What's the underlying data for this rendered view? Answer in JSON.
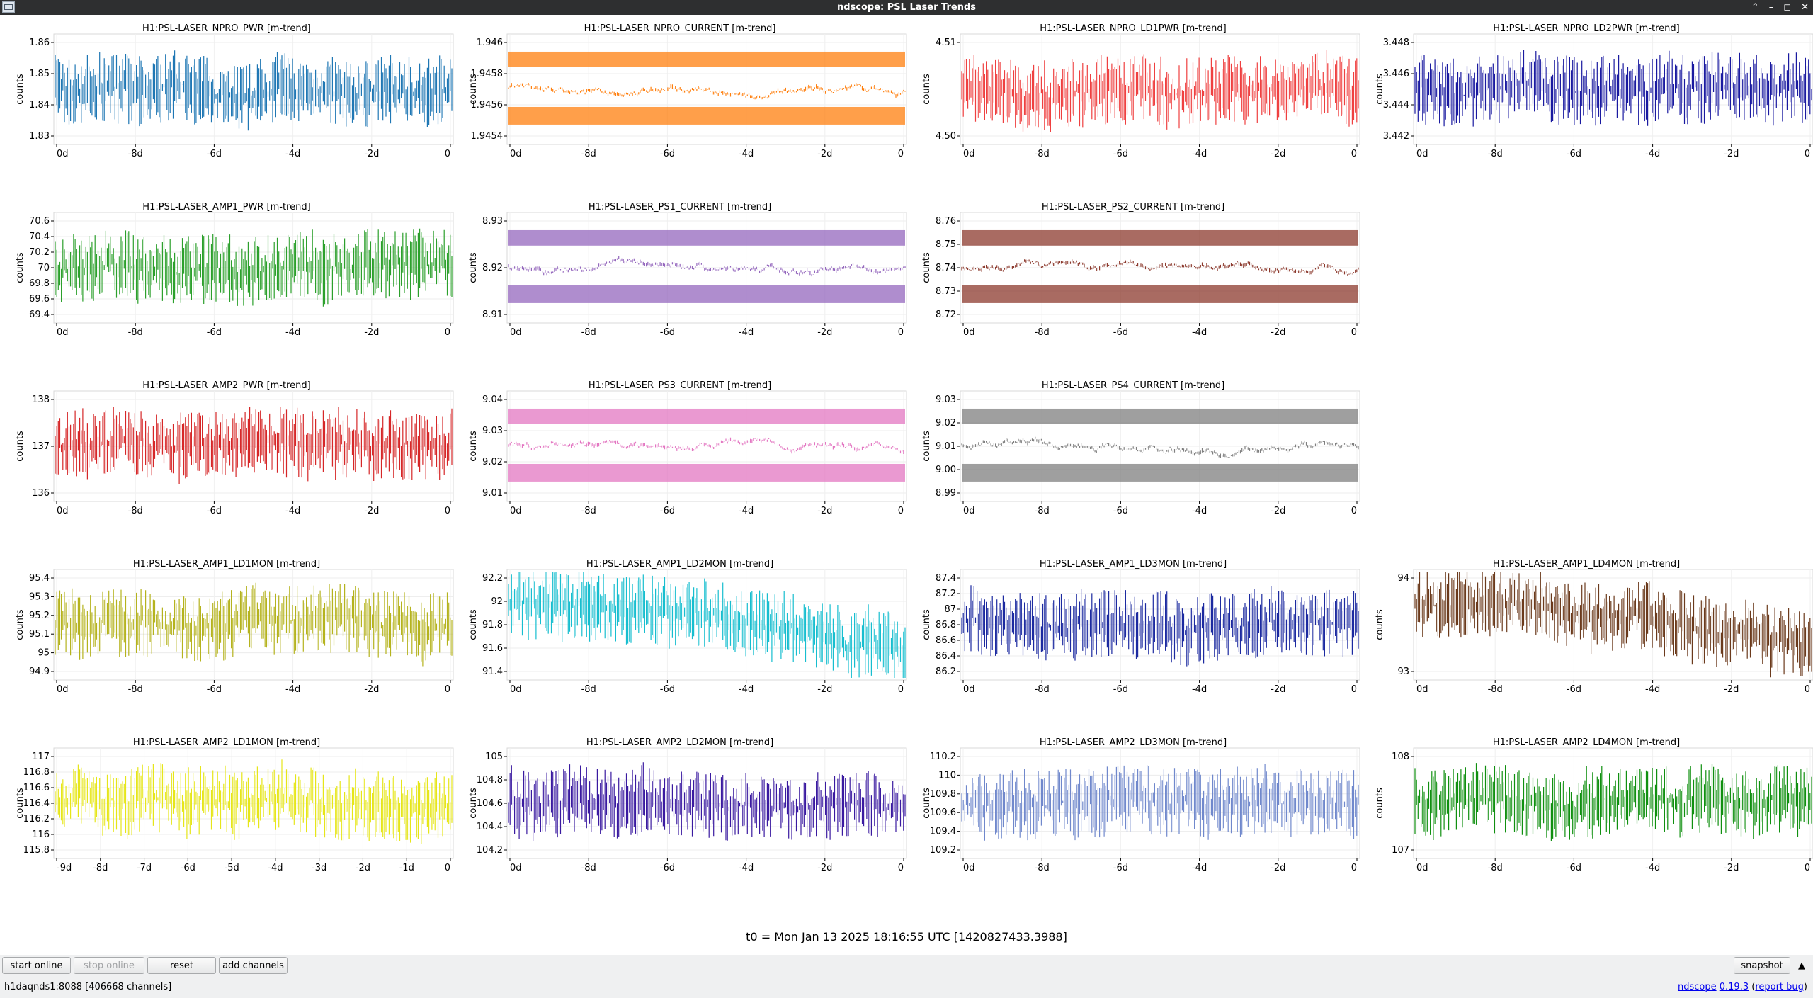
{
  "window": {
    "title": "ndscope: PSL Laser Trends"
  },
  "colors": {
    "titlebar": "#2e2f30",
    "plot_bg": "#ffffff",
    "grid": "#e8e8e8"
  },
  "plots": [
    {
      "title": "H1:PSL-LASER_NPRO_PWR [m-trend]",
      "color": "#1f77b4",
      "ylabel": "counts",
      "yticks": [
        "1.86",
        "1.85",
        "1.84",
        "1.83"
      ],
      "xticks": [
        "0d",
        "-8d",
        "-6d",
        "-4d",
        "-2d",
        "0"
      ]
    },
    {
      "title": "H1:PSL-LASER_NPRO_CURRENT [m-trend]",
      "color": "#ff7f0e",
      "ylabel": "counts",
      "yticks": [
        "1.946",
        "1.9458",
        "1.9456",
        "1.9454"
      ],
      "xticks": [
        "0d",
        "-8d",
        "-6d",
        "-4d",
        "-2d",
        "0"
      ]
    },
    {
      "title": "H1:PSL-LASER_NPRO_LD1PWR [m-trend]",
      "color": "#ef4040",
      "ylabel": "counts",
      "yticks": [
        "4.51",
        "4.50"
      ],
      "xticks": [
        "0d",
        "-8d",
        "-6d",
        "-4d",
        "-2d",
        "0"
      ]
    },
    {
      "title": "H1:PSL-LASER_NPRO_LD2PWR [m-trend]",
      "color": "#1a1aa0",
      "ylabel": "counts",
      "yticks": [
        "3.448",
        "3.446",
        "3.444",
        "3.442"
      ],
      "xticks": [
        "0d",
        "-8d",
        "-6d",
        "-4d",
        "-2d",
        "0"
      ]
    },
    {
      "title": "H1:PSL-LASER_AMP1_PWR [m-trend]",
      "color": "#2ca02c",
      "ylabel": "counts",
      "yticks": [
        "70.6",
        "70.4",
        "70.2",
        "70",
        "69.8",
        "69.6",
        "69.4"
      ],
      "xticks": [
        "0d",
        "-8d",
        "-6d",
        "-4d",
        "-2d",
        "0"
      ]
    },
    {
      "title": "H1:PSL-LASER_PS1_CURRENT [m-trend]",
      "color": "#9467bd",
      "ylabel": "counts",
      "yticks": [
        "8.93",
        "8.92",
        "8.91"
      ],
      "xticks": [
        "0d",
        "-8d",
        "-6d",
        "-4d",
        "-2d",
        "0"
      ]
    },
    {
      "title": "H1:PSL-LASER_PS2_CURRENT [m-trend]",
      "color": "#8c3a2e",
      "ylabel": "counts",
      "yticks": [
        "8.76",
        "8.75",
        "8.74",
        "8.73",
        "8.72"
      ],
      "xticks": [
        "0d",
        "-8d",
        "-6d",
        "-4d",
        "-2d",
        "0"
      ]
    },
    {
      "title": "H1:PSL-LASER_AMP2_PWR [m-trend]",
      "color": "#d62728",
      "ylabel": "counts",
      "yticks": [
        "138",
        "137",
        "136"
      ],
      "xticks": [
        "0d",
        "-8d",
        "-6d",
        "-4d",
        "-2d",
        "0"
      ]
    },
    {
      "title": "H1:PSL-LASER_PS3_CURRENT [m-trend]",
      "color": "#e377c2",
      "ylabel": "counts",
      "yticks": [
        "9.04",
        "9.03",
        "9.02",
        "9.01"
      ],
      "xticks": [
        "0d",
        "-8d",
        "-6d",
        "-4d",
        "-2d",
        "0"
      ]
    },
    {
      "title": "H1:PSL-LASER_PS4_CURRENT [m-trend]",
      "color": "#7f7f7f",
      "ylabel": "counts",
      "yticks": [
        "9.03",
        "9.02",
        "9.01",
        "9.00",
        "8.99"
      ],
      "xticks": [
        "0d",
        "-8d",
        "-6d",
        "-4d",
        "-2d",
        "0"
      ]
    },
    {
      "title": "H1:PSL-LASER_AMP1_LD1MON [m-trend]",
      "color": "#b5b31e",
      "ylabel": "counts",
      "yticks": [
        "95.4",
        "95.3",
        "95.2",
        "95.1",
        "95",
        "94.9"
      ],
      "xticks": [
        "0d",
        "-8d",
        "-6d",
        "-4d",
        "-2d",
        "0"
      ]
    },
    {
      "title": "H1:PSL-LASER_AMP1_LD2MON [m-trend]",
      "color": "#17becf",
      "ylabel": "counts",
      "yticks": [
        "92.2",
        "92",
        "91.8",
        "91.6",
        "91.4"
      ],
      "xticks": [
        "0d",
        "-8d",
        "-6d",
        "-4d",
        "-2d",
        "0"
      ]
    },
    {
      "title": "H1:PSL-LASER_AMP1_LD3MON [m-trend]",
      "color": "#1c2aa0",
      "ylabel": "counts",
      "yticks": [
        "87.4",
        "87.2",
        "87",
        "86.8",
        "86.6",
        "86.4",
        "86.2"
      ],
      "xticks": [
        "0d",
        "-8d",
        "-6d",
        "-4d",
        "-2d",
        "0"
      ]
    },
    {
      "title": "H1:PSL-LASER_AMP1_LD4MON [m-trend]",
      "color": "#6b3a1c",
      "ylabel": "counts",
      "yticks": [
        "94",
        "93"
      ],
      "xticks": [
        "0d",
        "-8d",
        "-6d",
        "-4d",
        "-2d",
        "0"
      ]
    },
    {
      "title": "H1:PSL-LASER_AMP2_LD1MON [m-trend]",
      "color": "#e6e619",
      "ylabel": "counts",
      "yticks": [
        "117",
        "116.8",
        "116.6",
        "116.4",
        "116.2",
        "116",
        "115.8"
      ],
      "xticks": [
        "-9d",
        "-8d",
        "-7d",
        "-6d",
        "-5d",
        "-4d",
        "-3d",
        "-2d",
        "-1d",
        "0"
      ]
    },
    {
      "title": "H1:PSL-LASER_AMP2_LD2MON [m-trend]",
      "color": "#3a1aa0",
      "ylabel": "counts",
      "yticks": [
        "105",
        "104.8",
        "104.6",
        "104.4",
        "104.2"
      ],
      "xticks": [
        "0d",
        "-8d",
        "-6d",
        "-4d",
        "-2d",
        "0"
      ]
    },
    {
      "title": "H1:PSL-LASER_AMP2_LD3MON [m-trend]",
      "color": "#7088cc",
      "ylabel": "counts",
      "yticks": [
        "110.2",
        "110",
        "109.8",
        "109.6",
        "109.4",
        "109.2"
      ],
      "xticks": [
        "0d",
        "-8d",
        "-6d",
        "-4d",
        "-2d",
        "0"
      ]
    },
    {
      "title": "H1:PSL-LASER_AMP2_LD4MON [m-trend]",
      "color": "#109010",
      "ylabel": "counts",
      "yticks": [
        "108",
        "107"
      ],
      "xticks": [
        "0d",
        "-8d",
        "-6d",
        "-4d",
        "-2d",
        "0"
      ]
    }
  ],
  "t0_label": "t0 = Mon Jan 13 2025 18:16:55 UTC [1420827433.3988]",
  "toolbar": {
    "start_online": "start online",
    "stop_online": "stop online",
    "reset": "reset",
    "add_channels": "add channels",
    "snapshot": "snapshot"
  },
  "status": {
    "server": "h1daqnds1:8088  [406668 channels]",
    "app_name": "ndscope",
    "version": "0.19.3",
    "report_bug": "report bug"
  }
}
